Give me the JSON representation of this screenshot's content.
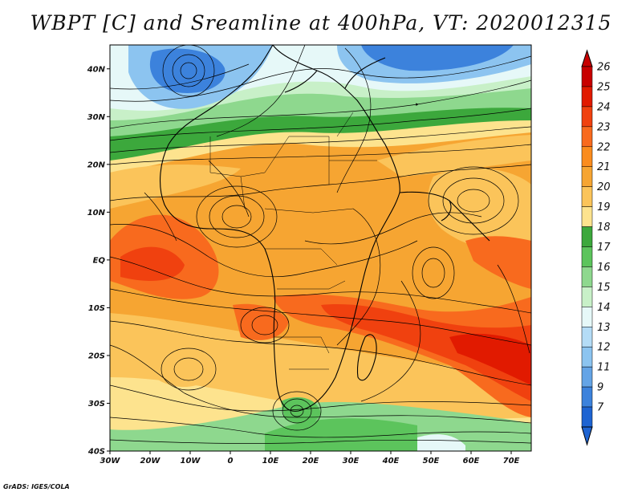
{
  "title": "WBPT [C] and Sreamline at 400hPa, VT: 2020012315",
  "credit": "GrADS: IGES/COLA",
  "map": {
    "lon_range": [
      -30,
      75
    ],
    "lat_range": [
      -40,
      45
    ],
    "lat_ticks": [
      {
        "value": 40,
        "label": "40N"
      },
      {
        "value": 30,
        "label": "30N"
      },
      {
        "value": 20,
        "label": "20N"
      },
      {
        "value": 10,
        "label": "10N"
      },
      {
        "value": 0,
        "label": "EQ"
      },
      {
        "value": -10,
        "label": "10S"
      },
      {
        "value": -20,
        "label": "20S"
      },
      {
        "value": -30,
        "label": "30S"
      },
      {
        "value": -40,
        "label": "40S"
      }
    ],
    "lon_ticks": [
      {
        "value": -30,
        "label": "30W"
      },
      {
        "value": -20,
        "label": "20W"
      },
      {
        "value": -10,
        "label": "10W"
      },
      {
        "value": 0,
        "label": "0"
      },
      {
        "value": 10,
        "label": "10E"
      },
      {
        "value": 20,
        "label": "20E"
      },
      {
        "value": 30,
        "label": "30E"
      },
      {
        "value": 40,
        "label": "40E"
      },
      {
        "value": 50,
        "label": "50E"
      },
      {
        "value": 60,
        "label": "60E"
      },
      {
        "value": 70,
        "label": "70E"
      }
    ]
  },
  "colorbar": {
    "labels": [
      "26",
      "25",
      "24",
      "23",
      "22",
      "21",
      "20",
      "19",
      "18",
      "17",
      "16",
      "15",
      "14",
      "13",
      "12",
      "11",
      "9",
      "7"
    ],
    "colors": [
      "#c80000",
      "#e11a00",
      "#f0410f",
      "#f86a1e",
      "#fa8c1e",
      "#f6a532",
      "#fbc45a",
      "#fde38e",
      "#3ca83c",
      "#5cc45c",
      "#8ed88e",
      "#c8f0c8",
      "#e6f8f8",
      "#b4dcf6",
      "#8cc4f0",
      "#64a4e6",
      "#3c82dc",
      "#1e64d2"
    ]
  }
}
